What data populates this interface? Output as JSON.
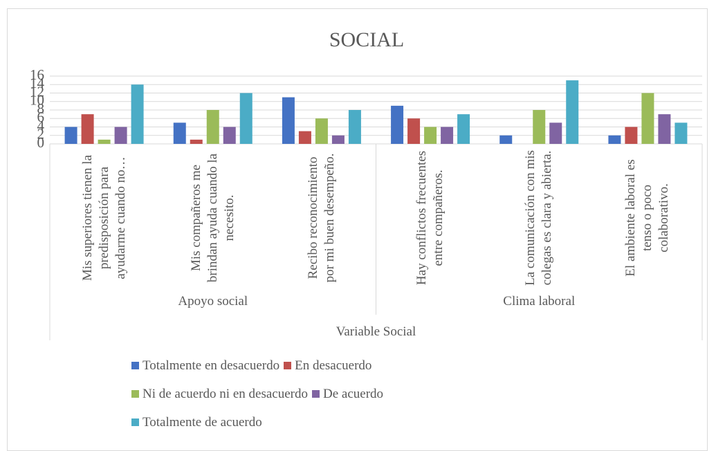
{
  "chart_data": {
    "type": "bar",
    "title": "SOCIAL",
    "x_axis_title": "Variable Social",
    "groups": [
      "Apoyo social",
      "Clima laboral"
    ],
    "categories": [
      "Mis superiores tienen la predisposición para ayudarme cuando no…",
      "Mis compañeros me brindan ayuda cuando la necesito.",
      "Recibo reconocimiento por mi buen desempeño.",
      "Hay conflictos frecuentes entre compañeros.",
      "La comunicación con mis colegas es clara y abierta.",
      "El ambiente laboral es tenso o poco colaborativo."
    ],
    "series": [
      {
        "name": "Totalmente en desacuerdo",
        "color": "#4472c4",
        "values": [
          4,
          5,
          11,
          9,
          2,
          2
        ]
      },
      {
        "name": "En desacuerdo",
        "color": "#c0504d",
        "values": [
          7,
          1,
          3,
          6,
          0,
          4
        ]
      },
      {
        "name": "Ni de acuerdo ni en desacuerdo",
        "color": "#9bbb59",
        "values": [
          1,
          8,
          6,
          4,
          8,
          12
        ]
      },
      {
        "name": "De acuerdo",
        "color": "#8064a2",
        "values": [
          4,
          4,
          2,
          4,
          5,
          7
        ]
      },
      {
        "name": "Totalmente de acuerdo",
        "color": "#4bacc6",
        "values": [
          14,
          12,
          8,
          7,
          15,
          5
        ]
      }
    ],
    "ylim": [
      0,
      16
    ],
    "yticks": [
      0,
      2,
      4,
      6,
      8,
      10,
      12,
      14,
      16
    ],
    "grid": true
  }
}
